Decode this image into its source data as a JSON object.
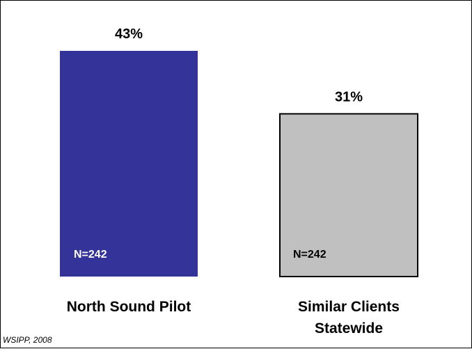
{
  "chart_data": {
    "type": "bar",
    "categories": [
      "North Sound Pilot",
      "Similar Clients Statewide"
    ],
    "category_lines": [
      [
        "North Sound Pilot"
      ],
      [
        "Similar Clients",
        "Statewide"
      ]
    ],
    "values": [
      43,
      31
    ],
    "value_labels": [
      "43%",
      "31%"
    ],
    "n_labels": [
      "N=242",
      "N=242"
    ],
    "colors": [
      "#333399",
      "#C0C0C0"
    ],
    "n_label_colors": [
      "#FFFFFF",
      "#000000"
    ],
    "bar_outline": [
      "none",
      "#000000"
    ],
    "ylim": [
      0,
      43
    ],
    "grid": false,
    "title": "",
    "xlabel": "",
    "ylabel": ""
  },
  "source": "WSIPP, 2008"
}
